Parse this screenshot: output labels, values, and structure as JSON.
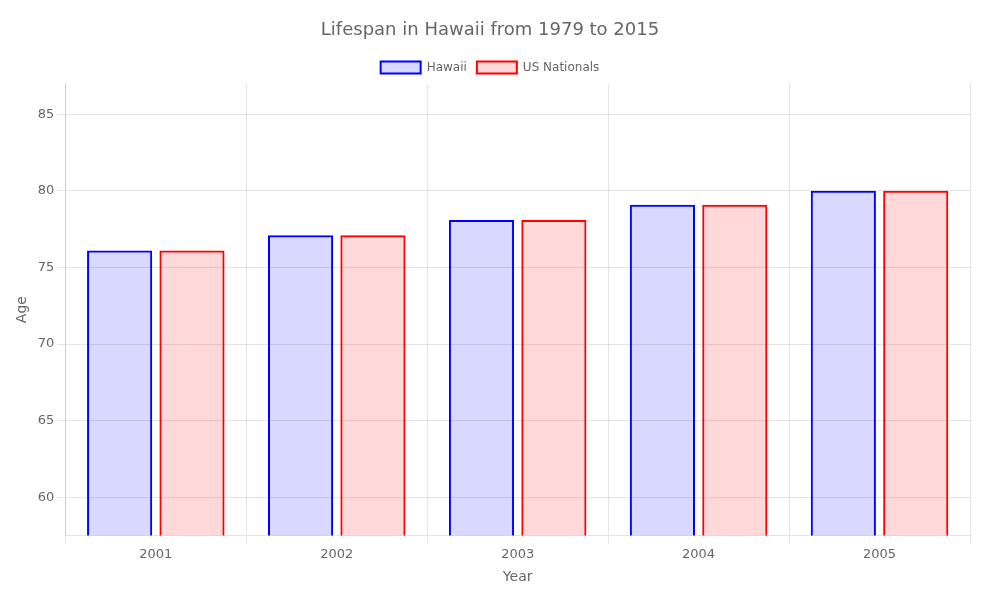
{
  "chart_data": {
    "type": "bar",
    "title": "Lifespan in Hawaii from 1979 to 2015",
    "x_label": "Year",
    "y_label": "Age",
    "categories": [
      2001,
      2002,
      2003,
      2004,
      2005
    ],
    "series": [
      {
        "name": "Hawaii",
        "color": "#0000ff",
        "values": [
          76.1,
          77.1,
          78.1,
          79.1,
          80.0
        ]
      },
      {
        "name": "US Nationals",
        "color": "#ff0000",
        "values": [
          76.1,
          77.1,
          78.1,
          79.1,
          80.0
        ]
      }
    ],
    "ylim": [
      57.5,
      87
    ],
    "yticks": [
      60,
      65,
      70,
      75,
      80,
      85
    ],
    "grid": true,
    "legend": "top"
  }
}
